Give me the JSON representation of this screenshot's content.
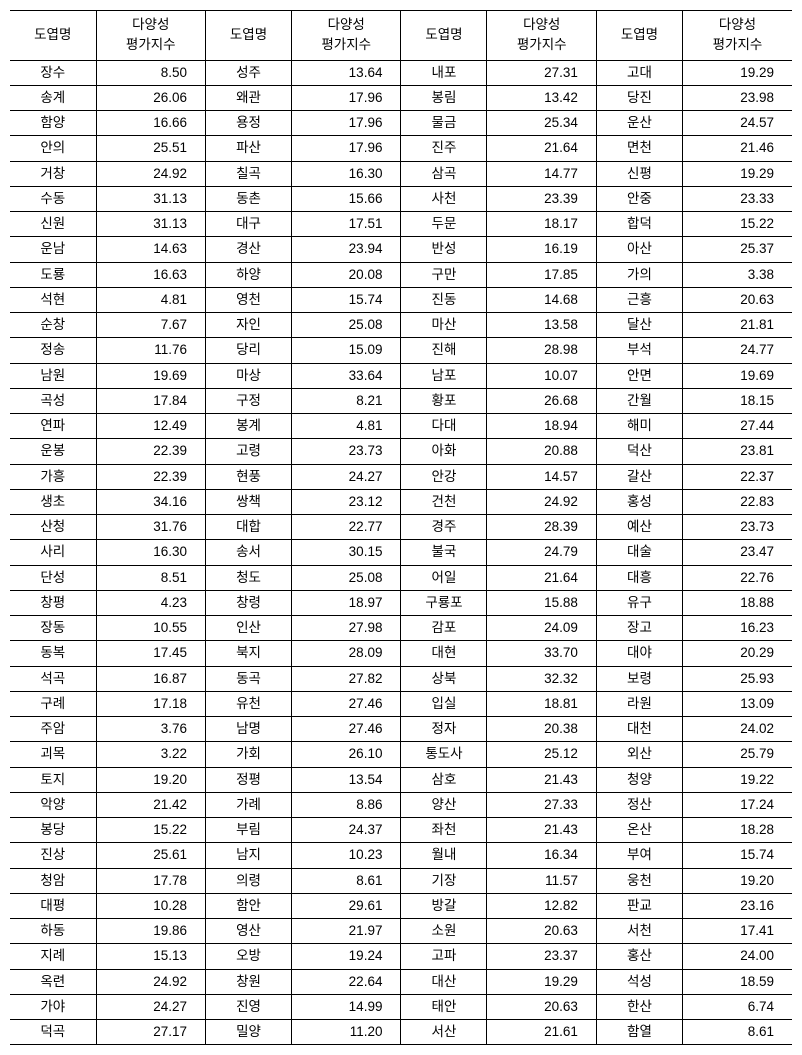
{
  "headers": {
    "name": "도엽명",
    "value_l1": "다양성",
    "value_l2": "평가지수"
  },
  "cols": [
    [
      [
        "장수",
        "8.50"
      ],
      [
        "송계",
        "26.06"
      ],
      [
        "함양",
        "16.66"
      ],
      [
        "안의",
        "25.51"
      ],
      [
        "거창",
        "24.92"
      ],
      [
        "수동",
        "31.13"
      ],
      [
        "신원",
        "31.13"
      ],
      [
        "운남",
        "14.63"
      ],
      [
        "도룡",
        "16.63"
      ],
      [
        "석현",
        "4.81"
      ],
      [
        "순창",
        "7.67"
      ],
      [
        "정송",
        "11.76"
      ],
      [
        "남원",
        "19.69"
      ],
      [
        "곡성",
        "17.84"
      ],
      [
        "연파",
        "12.49"
      ],
      [
        "운봉",
        "22.39"
      ],
      [
        "가흥",
        "22.39"
      ],
      [
        "생초",
        "34.16"
      ],
      [
        "산청",
        "31.76"
      ],
      [
        "사리",
        "16.30"
      ],
      [
        "단성",
        "8.51"
      ],
      [
        "창평",
        "4.23"
      ],
      [
        "장동",
        "10.55"
      ],
      [
        "동복",
        "17.45"
      ],
      [
        "석곡",
        "16.87"
      ],
      [
        "구례",
        "17.18"
      ],
      [
        "주암",
        "3.76"
      ],
      [
        "괴목",
        "3.22"
      ],
      [
        "토지",
        "19.20"
      ],
      [
        "악양",
        "21.42"
      ],
      [
        "봉당",
        "15.22"
      ],
      [
        "진상",
        "25.61"
      ],
      [
        "청암",
        "17.78"
      ],
      [
        "대평",
        "10.28"
      ],
      [
        "하동",
        "19.86"
      ],
      [
        "지례",
        "15.13"
      ],
      [
        "옥련",
        "24.92"
      ],
      [
        "가야",
        "24.27"
      ],
      [
        "덕곡",
        "27.17"
      ]
    ],
    [
      [
        "성주",
        "13.64"
      ],
      [
        "왜관",
        "17.96"
      ],
      [
        "용정",
        "17.96"
      ],
      [
        "파산",
        "17.96"
      ],
      [
        "칠곡",
        "16.30"
      ],
      [
        "동촌",
        "15.66"
      ],
      [
        "대구",
        "17.51"
      ],
      [
        "경산",
        "23.94"
      ],
      [
        "하양",
        "20.08"
      ],
      [
        "영천",
        "15.74"
      ],
      [
        "자인",
        "25.08"
      ],
      [
        "당리",
        "15.09"
      ],
      [
        "마상",
        "33.64"
      ],
      [
        "구정",
        "8.21"
      ],
      [
        "봉계",
        "4.81"
      ],
      [
        "고령",
        "23.73"
      ],
      [
        "현풍",
        "24.27"
      ],
      [
        "쌍책",
        "23.12"
      ],
      [
        "대합",
        "22.77"
      ],
      [
        "송서",
        "30.15"
      ],
      [
        "청도",
        "25.08"
      ],
      [
        "창령",
        "18.97"
      ],
      [
        "인산",
        "27.98"
      ],
      [
        "북지",
        "28.09"
      ],
      [
        "동곡",
        "27.82"
      ],
      [
        "유천",
        "27.46"
      ],
      [
        "남명",
        "27.46"
      ],
      [
        "가회",
        "26.10"
      ],
      [
        "정평",
        "13.54"
      ],
      [
        "가례",
        "8.86"
      ],
      [
        "부림",
        "24.37"
      ],
      [
        "남지",
        "10.23"
      ],
      [
        "의령",
        "8.61"
      ],
      [
        "함안",
        "29.61"
      ],
      [
        "영산",
        "21.97"
      ],
      [
        "오방",
        "19.24"
      ],
      [
        "창원",
        "22.64"
      ],
      [
        "진영",
        "14.99"
      ],
      [
        "밀양",
        "11.20"
      ]
    ],
    [
      [
        "내포",
        "27.31"
      ],
      [
        "봉림",
        "13.42"
      ],
      [
        "물금",
        "25.34"
      ],
      [
        "진주",
        "21.64"
      ],
      [
        "삼곡",
        "14.77"
      ],
      [
        "사천",
        "23.39"
      ],
      [
        "두문",
        "18.17"
      ],
      [
        "반성",
        "16.19"
      ],
      [
        "구만",
        "17.85"
      ],
      [
        "진동",
        "14.68"
      ],
      [
        "마산",
        "13.58"
      ],
      [
        "진해",
        "28.98"
      ],
      [
        "남포",
        "10.07"
      ],
      [
        "황포",
        "26.68"
      ],
      [
        "다대",
        "18.94"
      ],
      [
        "아화",
        "20.88"
      ],
      [
        "안강",
        "14.57"
      ],
      [
        "건천",
        "24.92"
      ],
      [
        "경주",
        "28.39"
      ],
      [
        "불국",
        "24.79"
      ],
      [
        "어일",
        "21.64"
      ],
      [
        "구룡포",
        "15.88"
      ],
      [
        "감포",
        "24.09"
      ],
      [
        "대현",
        "33.70"
      ],
      [
        "상북",
        "32.32"
      ],
      [
        "입실",
        "18.81"
      ],
      [
        "정자",
        "20.38"
      ],
      [
        "통도사",
        "25.12"
      ],
      [
        "삼호",
        "21.43"
      ],
      [
        "양산",
        "27.33"
      ],
      [
        "좌천",
        "21.43"
      ],
      [
        "월내",
        "16.34"
      ],
      [
        "기장",
        "11.57"
      ],
      [
        "방갈",
        "12.82"
      ],
      [
        "소원",
        "20.63"
      ],
      [
        "고파",
        "23.37"
      ],
      [
        "대산",
        "19.29"
      ],
      [
        "태안",
        "20.63"
      ],
      [
        "서산",
        "21.61"
      ]
    ],
    [
      [
        "고대",
        "19.29"
      ],
      [
        "당진",
        "23.98"
      ],
      [
        "운산",
        "24.57"
      ],
      [
        "면천",
        "21.46"
      ],
      [
        "신평",
        "19.29"
      ],
      [
        "안중",
        "23.33"
      ],
      [
        "합덕",
        "15.22"
      ],
      [
        "아산",
        "25.37"
      ],
      [
        "가의",
        "3.38"
      ],
      [
        "근흥",
        "20.63"
      ],
      [
        "달산",
        "21.81"
      ],
      [
        "부석",
        "24.77"
      ],
      [
        "안면",
        "19.69"
      ],
      [
        "간월",
        "18.15"
      ],
      [
        "해미",
        "27.44"
      ],
      [
        "덕산",
        "23.81"
      ],
      [
        "갈산",
        "22.37"
      ],
      [
        "홍성",
        "22.83"
      ],
      [
        "예산",
        "23.73"
      ],
      [
        "대술",
        "23.47"
      ],
      [
        "대흥",
        "22.76"
      ],
      [
        "유구",
        "18.88"
      ],
      [
        "장고",
        "16.23"
      ],
      [
        "대야",
        "20.29"
      ],
      [
        "보령",
        "25.93"
      ],
      [
        "라원",
        "13.09"
      ],
      [
        "대천",
        "24.02"
      ],
      [
        "외산",
        "25.79"
      ],
      [
        "청양",
        "19.22"
      ],
      [
        "정산",
        "17.24"
      ],
      [
        "온산",
        "18.28"
      ],
      [
        "부여",
        "15.74"
      ],
      [
        "웅천",
        "19.20"
      ],
      [
        "판교",
        "23.16"
      ],
      [
        "서천",
        "17.41"
      ],
      [
        "홍산",
        "24.00"
      ],
      [
        "석성",
        "18.59"
      ],
      [
        "한산",
        "6.74"
      ],
      [
        "함열",
        "8.61"
      ]
    ]
  ]
}
